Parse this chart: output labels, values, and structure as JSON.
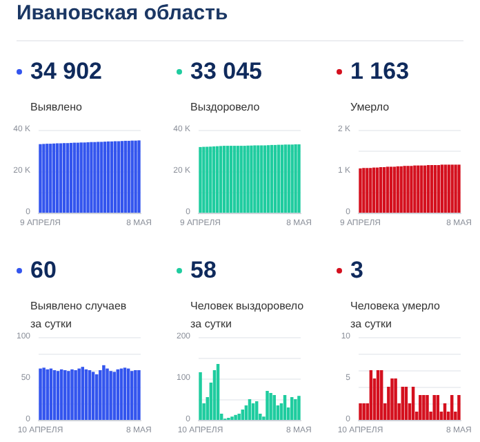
{
  "chart_data": [
    {
      "type": "bar",
      "annotations": [
        "Ивановская область"
      ],
      "subtitle": "34 902",
      "title": "Выявлено",
      "color": "#3355ee",
      "categories": [
        "9 АПРЕЛЯ",
        null,
        null,
        null,
        null,
        null,
        null,
        null,
        null,
        null,
        null,
        null,
        null,
        null,
        null,
        null,
        null,
        null,
        null,
        null,
        null,
        null,
        null,
        null,
        null,
        null,
        null,
        null,
        null,
        "8 МАЯ"
      ],
      "values": [
        33100,
        33200,
        33300,
        33300,
        33400,
        33500,
        33500,
        33600,
        33600,
        33700,
        33800,
        33800,
        33900,
        33900,
        34000,
        34100,
        34100,
        34200,
        34200,
        34300,
        34400,
        34400,
        34500,
        34500,
        34600,
        34700,
        34700,
        34800,
        34800,
        34900
      ],
      "ylim": [
        0,
        40000
      ],
      "yticks": [
        0,
        {
          "value": 20000,
          "label": "20 K"
        },
        {
          "value": 40000,
          "label": "40 K"
        }
      ],
      "grid": "y"
    },
    {
      "type": "bar",
      "subtitle": "33 045",
      "title": "Выздоровело",
      "color": "#1fcc9f",
      "categories": [
        "9 АПРЕЛЯ",
        null,
        null,
        null,
        null,
        null,
        null,
        null,
        null,
        null,
        null,
        null,
        null,
        null,
        null,
        null,
        null,
        null,
        null,
        null,
        null,
        null,
        null,
        null,
        null,
        null,
        null,
        null,
        null,
        "8 МАЯ"
      ],
      "values": [
        31700,
        31800,
        31800,
        31900,
        32000,
        32100,
        32200,
        32300,
        32300,
        32300,
        32300,
        32300,
        32300,
        32300,
        32400,
        32400,
        32500,
        32500,
        32500,
        32500,
        32600,
        32700,
        32700,
        32800,
        32800,
        32900,
        32900,
        32900,
        33000,
        33000
      ],
      "ylim": [
        0,
        40000
      ],
      "yticks": [
        0,
        {
          "value": 20000,
          "label": "20 K"
        },
        {
          "value": 40000,
          "label": "40 K"
        }
      ],
      "grid": "y"
    },
    {
      "type": "bar",
      "subtitle": "1 163",
      "title": "Умерло",
      "color": "#d4101e",
      "categories": [
        "9 АПРЕЛЯ",
        null,
        null,
        null,
        null,
        null,
        null,
        null,
        null,
        null,
        null,
        null,
        null,
        null,
        null,
        null,
        null,
        null,
        null,
        null,
        null,
        null,
        null,
        null,
        null,
        null,
        null,
        null,
        null,
        "8 МАЯ"
      ],
      "values": [
        1070,
        1080,
        1080,
        1080,
        1090,
        1090,
        1100,
        1100,
        1110,
        1110,
        1110,
        1120,
        1120,
        1130,
        1130,
        1130,
        1140,
        1140,
        1140,
        1140,
        1150,
        1150,
        1150,
        1150,
        1160,
        1160,
        1160,
        1160,
        1160,
        1160
      ],
      "ylim": [
        0,
        2000
      ],
      "yticks": [
        0,
        {
          "value": 1000,
          "label": "1 K"
        },
        {
          "value": 2000,
          "label": "2 K"
        }
      ],
      "grid": "y"
    },
    {
      "type": "bar",
      "subtitle": "60",
      "title": "Выявлено случаев\nза сутки",
      "color": "#3355ee",
      "categories": [
        "10 АПРЕЛЯ",
        null,
        null,
        null,
        null,
        null,
        null,
        null,
        null,
        null,
        null,
        null,
        null,
        null,
        null,
        null,
        null,
        null,
        null,
        null,
        null,
        null,
        null,
        null,
        null,
        null,
        null,
        null,
        "8 МАЯ"
      ],
      "values": [
        62,
        63,
        61,
        62,
        60,
        59,
        61,
        60,
        59,
        61,
        60,
        62,
        64,
        61,
        60,
        58,
        55,
        60,
        66,
        62,
        59,
        58,
        61,
        62,
        63,
        62,
        59,
        60,
        60
      ],
      "ylim": [
        0,
        100
      ],
      "yticks": [
        0,
        50,
        100
      ],
      "grid": "y"
    },
    {
      "type": "bar",
      "subtitle": "58",
      "title": "Человек выздоровело\nза сутки",
      "color": "#1fcc9f",
      "categories": [
        "10 АПРЕЛЯ",
        null,
        null,
        null,
        null,
        null,
        null,
        null,
        null,
        null,
        null,
        null,
        null,
        null,
        null,
        null,
        null,
        null,
        null,
        null,
        null,
        null,
        null,
        null,
        null,
        null,
        null,
        null,
        "8 МАЯ"
      ],
      "values": [
        115,
        40,
        55,
        90,
        120,
        135,
        15,
        3,
        5,
        8,
        12,
        15,
        25,
        35,
        50,
        40,
        45,
        15,
        8,
        70,
        65,
        60,
        35,
        40,
        60,
        30,
        55,
        50,
        58
      ],
      "ylim": [
        0,
        200
      ],
      "yticks": [
        0,
        100,
        200
      ],
      "grid": "y"
    },
    {
      "type": "bar",
      "subtitle": "3",
      "title": "Человека умерло\nза сутки",
      "color": "#d4101e",
      "categories": [
        "10 АПРЕЛЯ",
        null,
        null,
        null,
        null,
        null,
        null,
        null,
        null,
        null,
        null,
        null,
        null,
        null,
        null,
        null,
        null,
        null,
        null,
        null,
        null,
        null,
        null,
        null,
        null,
        null,
        null,
        null,
        "8 МАЯ"
      ],
      "values": [
        2,
        2,
        2,
        6,
        5,
        6,
        6,
        2,
        4,
        5,
        5,
        2,
        4,
        4,
        2,
        4,
        1,
        3,
        3,
        3,
        1,
        3,
        3,
        1,
        2,
        1,
        3,
        1,
        3
      ],
      "ylim": [
        0,
        10
      ],
      "yticks": [
        0,
        5,
        10
      ],
      "grid": "y"
    }
  ]
}
